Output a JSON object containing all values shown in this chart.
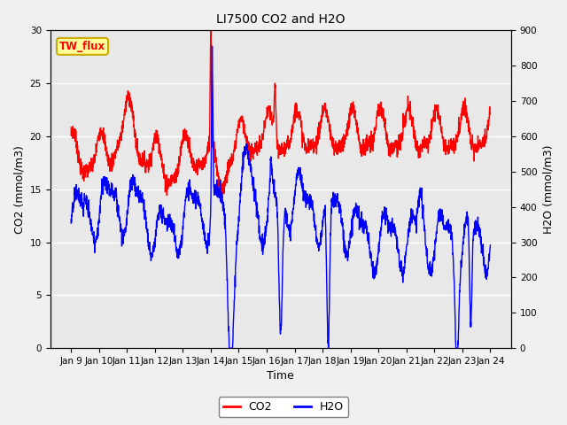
{
  "title": "LI7500 CO2 and H2O",
  "xlabel": "Time",
  "ylabel_left": "CO2 (mmol/m3)",
  "ylabel_right": "H2O (mmol/m3)",
  "annotation": "TW_flux",
  "ylim_left": [
    0,
    30
  ],
  "ylim_right": [
    0,
    900
  ],
  "yticks_left": [
    0,
    5,
    10,
    15,
    20,
    25,
    30
  ],
  "yticks_right": [
    0,
    100,
    200,
    300,
    400,
    500,
    600,
    700,
    800,
    900
  ],
  "xtick_labels": [
    "Jan 9",
    "Jan 10",
    "Jan 11",
    "Jan 12",
    "Jan 13",
    "Jan 14",
    "Jan 15",
    "Jan 16",
    "Jan 17",
    "Jan 18",
    "Jan 19",
    "Jan 20",
    "Jan 21",
    "Jan 22",
    "Jan 23",
    "Jan 24"
  ],
  "co2_color": "#ff0000",
  "h2o_color": "#0000ff",
  "plot_bg_color": "#e8e8e8",
  "fig_bg_color": "#f0f0f0",
  "annotation_bg": "#ffff99",
  "annotation_border": "#ccaa00",
  "legend_co2": "CO2",
  "legend_h2o": "H2O",
  "linewidth": 1.0,
  "n_points": 2000
}
